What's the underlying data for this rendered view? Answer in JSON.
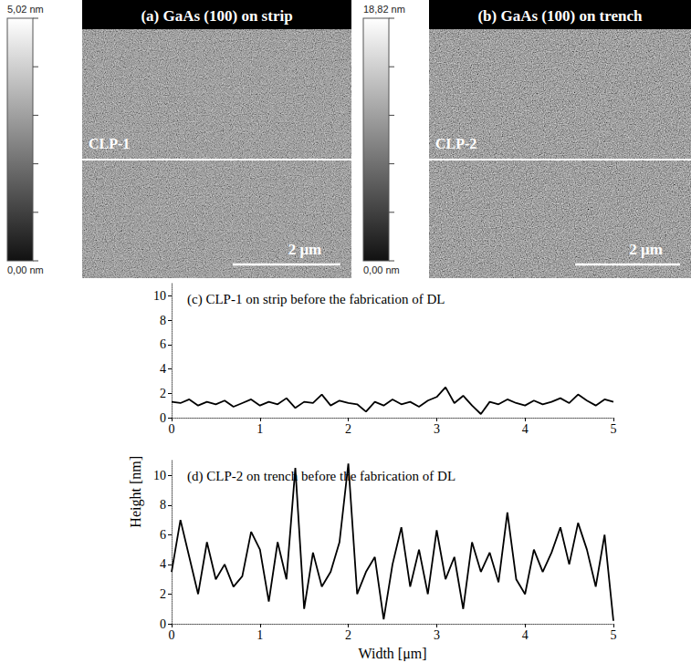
{
  "panels": [
    {
      "title": "(a) GaAs (100) on strip",
      "colorbar_labels": [
        "5,02 nm",
        "0,00 nm"
      ],
      "line_label": "CLP-1",
      "scale_bar": "2 μm"
    },
    {
      "title": "(b) GaAs (100) on trench",
      "colorbar_labels": [
        "18,82 nm",
        "0,00 nm"
      ],
      "line_label": "CLP-2",
      "scale_bar": "2 μm"
    }
  ],
  "chart_data": [
    {
      "type": "line",
      "title": "(c) CLP-1 on strip before the fabrication of DL",
      "x": [
        0,
        0.1,
        0.2,
        0.3,
        0.4,
        0.5,
        0.6,
        0.7,
        0.8,
        0.9,
        1,
        1.1,
        1.2,
        1.3,
        1.4,
        1.5,
        1.6,
        1.7,
        1.8,
        1.9,
        2,
        2.1,
        2.2,
        2.3,
        2.4,
        2.5,
        2.6,
        2.7,
        2.8,
        2.9,
        3,
        3.1,
        3.2,
        3.3,
        3.4,
        3.5,
        3.6,
        3.7,
        3.8,
        3.9,
        4,
        4.1,
        4.2,
        4.3,
        4.4,
        4.5,
        4.6,
        4.7,
        4.8,
        4.9,
        5
      ],
      "values": [
        1.3,
        1.2,
        1.5,
        1.0,
        1.3,
        1.1,
        1.4,
        0.9,
        1.2,
        1.5,
        1.0,
        1.3,
        1.1,
        1.6,
        0.8,
        1.3,
        1.2,
        1.9,
        1.0,
        1.4,
        1.2,
        1.1,
        0.5,
        1.3,
        1.0,
        1.5,
        1.1,
        1.3,
        0.9,
        1.4,
        1.7,
        2.5,
        1.2,
        1.8,
        1.0,
        0.3,
        1.3,
        1.1,
        1.5,
        1.2,
        1.0,
        1.4,
        1.1,
        1.3,
        1.6,
        1.2,
        1.9,
        1.4,
        1.0,
        1.5,
        1.3
      ],
      "color": "#000000",
      "xlim": [
        0,
        5
      ],
      "xticks": [
        0,
        1,
        2,
        3,
        4,
        5
      ],
      "ylim": [
        0,
        11
      ],
      "yticks": [
        0,
        2,
        4,
        6,
        8,
        10
      ]
    },
    {
      "type": "line",
      "title": "(d) CLP-2 on trench before the fabrication of DL",
      "x": [
        0,
        0.1,
        0.2,
        0.3,
        0.4,
        0.5,
        0.6,
        0.7,
        0.8,
        0.9,
        1,
        1.1,
        1.2,
        1.3,
        1.4,
        1.5,
        1.6,
        1.7,
        1.8,
        1.9,
        2,
        2.1,
        2.2,
        2.3,
        2.4,
        2.5,
        2.6,
        2.7,
        2.8,
        2.9,
        3,
        3.1,
        3.2,
        3.3,
        3.4,
        3.5,
        3.6,
        3.7,
        3.8,
        3.9,
        4,
        4.1,
        4.2,
        4.3,
        4.4,
        4.5,
        4.6,
        4.7,
        4.8,
        4.9,
        5
      ],
      "values": [
        3.5,
        7.0,
        4.5,
        2.0,
        5.5,
        3.0,
        4.0,
        2.5,
        3.2,
        6.2,
        5.0,
        1.5,
        5.5,
        3.0,
        10.5,
        1.0,
        4.8,
        2.5,
        3.5,
        5.5,
        10.8,
        2.0,
        3.5,
        4.5,
        0.3,
        4.0,
        6.5,
        2.5,
        5.0,
        2.0,
        6.3,
        3.0,
        4.5,
        1.0,
        5.5,
        3.5,
        4.8,
        2.8,
        7.5,
        3.0,
        2.0,
        5.0,
        3.5,
        4.8,
        6.5,
        4.0,
        6.8,
        5.0,
        2.5,
        6.0,
        0.2
      ],
      "color": "#000000",
      "xlim": [
        0,
        5
      ],
      "xticks": [
        0,
        1,
        2,
        3,
        4,
        5
      ],
      "ylim": [
        0,
        11
      ],
      "yticks": [
        0,
        2,
        4,
        6,
        8,
        10
      ],
      "xlabel": "Width [μm]",
      "ylabel": "Height [nm]"
    }
  ]
}
